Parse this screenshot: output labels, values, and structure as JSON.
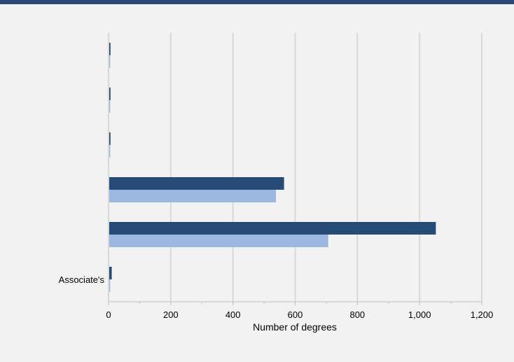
{
  "colors": {
    "header_rule": "#2a4a75",
    "background": "#f2f2f2",
    "series_dark": "#264b77",
    "series_light": "#9db8e0",
    "grid": "#d9d9d9",
    "axis": "#bfbfbf"
  },
  "chart_data": {
    "type": "bar",
    "orientation": "horizontal",
    "title": "",
    "xlabel": "Number of degrees",
    "ylabel": "",
    "xlim": [
      0,
      1200
    ],
    "x_ticks": [
      0,
      200,
      400,
      600,
      800,
      1000,
      1200
    ],
    "x_tick_labels": [
      "0",
      "200",
      "400",
      "600",
      "800",
      "1,000",
      "1,200"
    ],
    "grid": "vertical",
    "legend": "none",
    "categories": [
      "",
      "",
      "",
      "",
      "",
      "Associate's"
    ],
    "series": [
      {
        "color": "#264b77",
        "values": [
          4,
          4,
          4,
          562,
          1050,
          8
        ]
      },
      {
        "color": "#9db8e0",
        "values": [
          3,
          3,
          3,
          536,
          704,
          3
        ]
      }
    ]
  }
}
